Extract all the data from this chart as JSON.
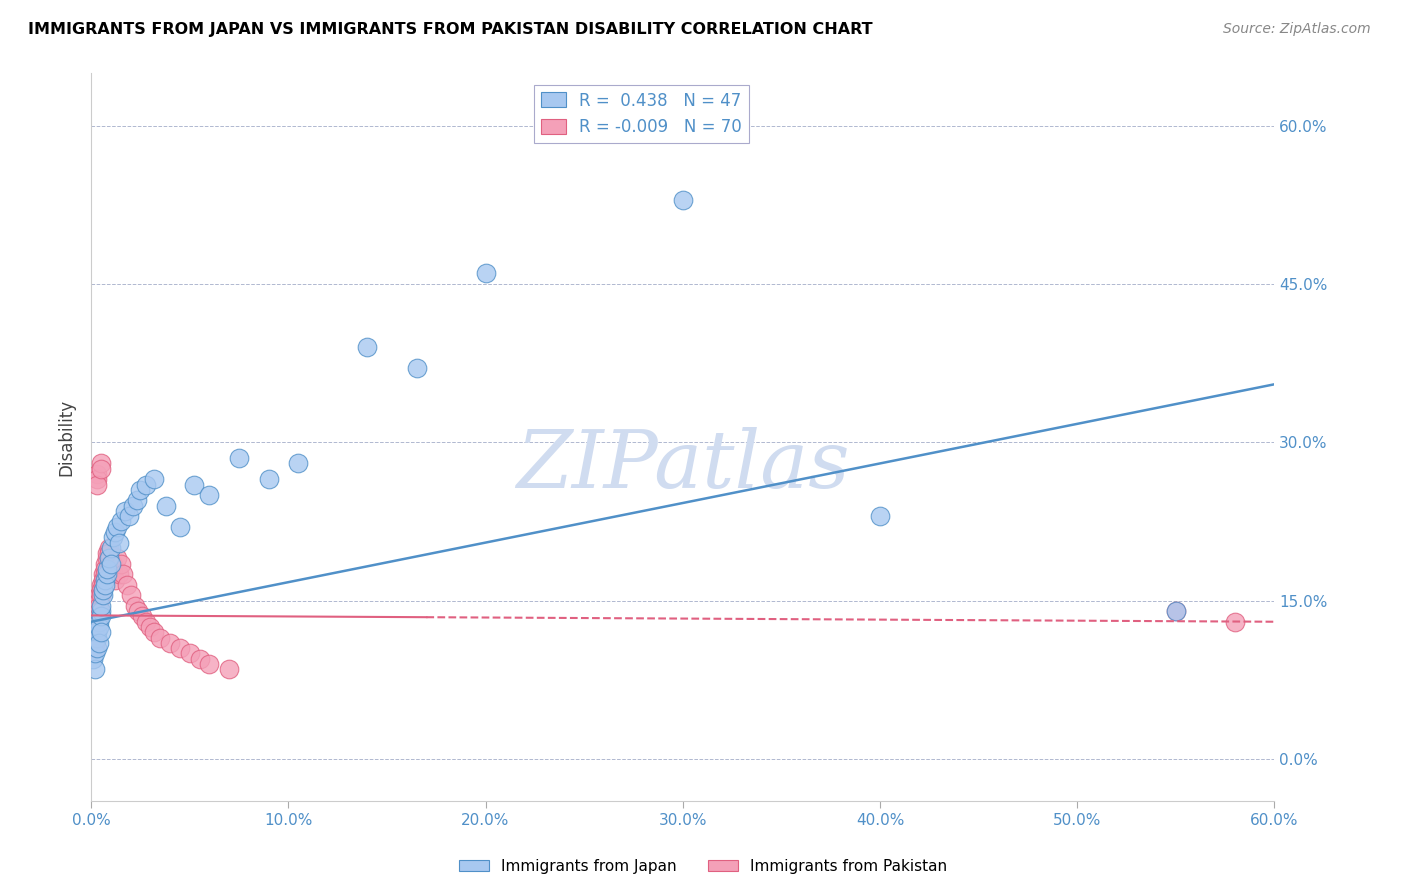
{
  "title": "IMMIGRANTS FROM JAPAN VS IMMIGRANTS FROM PAKISTAN DISABILITY CORRELATION CHART",
  "source": "Source: ZipAtlas.com",
  "ylabel": "Disability",
  "legend_japan": "Immigrants from Japan",
  "legend_pakistan": "Immigrants from Pakistan",
  "R_japan": 0.438,
  "N_japan": 47,
  "R_pakistan": -0.009,
  "N_pakistan": 70,
  "xlim": [
    0.0,
    0.6
  ],
  "ylim": [
    -0.04,
    0.65
  ],
  "plot_ylim": [
    0.0,
    0.65
  ],
  "yticks": [
    0.0,
    0.15,
    0.3,
    0.45,
    0.6
  ],
  "xticks": [
    0.0,
    0.1,
    0.2,
    0.3,
    0.4,
    0.5,
    0.6
  ],
  "color_japan": "#A8C8F0",
  "color_pakistan": "#F4A0B8",
  "trendline_japan_color": "#5090C8",
  "trendline_pakistan_color": "#E06080",
  "axis_label_color": "#5090C8",
  "watermark_color": "#D0DCF0",
  "japan_x": [
    0.001,
    0.002,
    0.002,
    0.003,
    0.003,
    0.003,
    0.004,
    0.004,
    0.004,
    0.005,
    0.005,
    0.005,
    0.005,
    0.006,
    0.006,
    0.007,
    0.007,
    0.008,
    0.008,
    0.009,
    0.01,
    0.01,
    0.011,
    0.012,
    0.013,
    0.014,
    0.015,
    0.017,
    0.019,
    0.021,
    0.023,
    0.025,
    0.028,
    0.032,
    0.038,
    0.045,
    0.052,
    0.06,
    0.075,
    0.09,
    0.105,
    0.14,
    0.165,
    0.2,
    0.3,
    0.4,
    0.55
  ],
  "japan_y": [
    0.095,
    0.085,
    0.1,
    0.115,
    0.12,
    0.105,
    0.13,
    0.125,
    0.11,
    0.14,
    0.135,
    0.145,
    0.12,
    0.155,
    0.16,
    0.17,
    0.165,
    0.175,
    0.18,
    0.19,
    0.2,
    0.185,
    0.21,
    0.215,
    0.22,
    0.205,
    0.225,
    0.235,
    0.23,
    0.24,
    0.245,
    0.255,
    0.26,
    0.265,
    0.24,
    0.22,
    0.26,
    0.25,
    0.285,
    0.265,
    0.28,
    0.39,
    0.37,
    0.46,
    0.53,
    0.23,
    0.14
  ],
  "pakistan_x": [
    0.0,
    0.0,
    0.0,
    0.001,
    0.001,
    0.001,
    0.001,
    0.001,
    0.001,
    0.002,
    0.002,
    0.002,
    0.002,
    0.002,
    0.002,
    0.002,
    0.002,
    0.003,
    0.003,
    0.003,
    0.003,
    0.003,
    0.003,
    0.003,
    0.004,
    0.004,
    0.004,
    0.004,
    0.004,
    0.005,
    0.005,
    0.005,
    0.005,
    0.005,
    0.006,
    0.006,
    0.006,
    0.007,
    0.007,
    0.007,
    0.008,
    0.008,
    0.009,
    0.009,
    0.01,
    0.01,
    0.011,
    0.011,
    0.012,
    0.013,
    0.014,
    0.015,
    0.016,
    0.018,
    0.02,
    0.022,
    0.024,
    0.026,
    0.028,
    0.03,
    0.032,
    0.035,
    0.04,
    0.045,
    0.05,
    0.055,
    0.06,
    0.07,
    0.55,
    0.58
  ],
  "pakistan_y": [
    0.125,
    0.115,
    0.105,
    0.135,
    0.13,
    0.125,
    0.12,
    0.115,
    0.11,
    0.14,
    0.135,
    0.13,
    0.125,
    0.12,
    0.115,
    0.11,
    0.105,
    0.27,
    0.265,
    0.26,
    0.145,
    0.14,
    0.135,
    0.13,
    0.155,
    0.15,
    0.145,
    0.14,
    0.135,
    0.28,
    0.275,
    0.165,
    0.16,
    0.155,
    0.175,
    0.17,
    0.165,
    0.185,
    0.18,
    0.175,
    0.19,
    0.195,
    0.2,
    0.195,
    0.18,
    0.175,
    0.185,
    0.18,
    0.17,
    0.19,
    0.175,
    0.185,
    0.175,
    0.165,
    0.155,
    0.145,
    0.14,
    0.135,
    0.13,
    0.125,
    0.12,
    0.115,
    0.11,
    0.105,
    0.1,
    0.095,
    0.09,
    0.085,
    0.14,
    0.13
  ],
  "trendline_japan_x0": 0.0,
  "trendline_japan_y0": 0.13,
  "trendline_japan_x1": 0.6,
  "trendline_japan_y1": 0.355,
  "trendline_pak_x0": 0.0,
  "trendline_pak_y0": 0.136,
  "trendline_pak_x1": 0.6,
  "trendline_pak_y1": 0.13,
  "trendline_pak_solid_x1": 0.17
}
